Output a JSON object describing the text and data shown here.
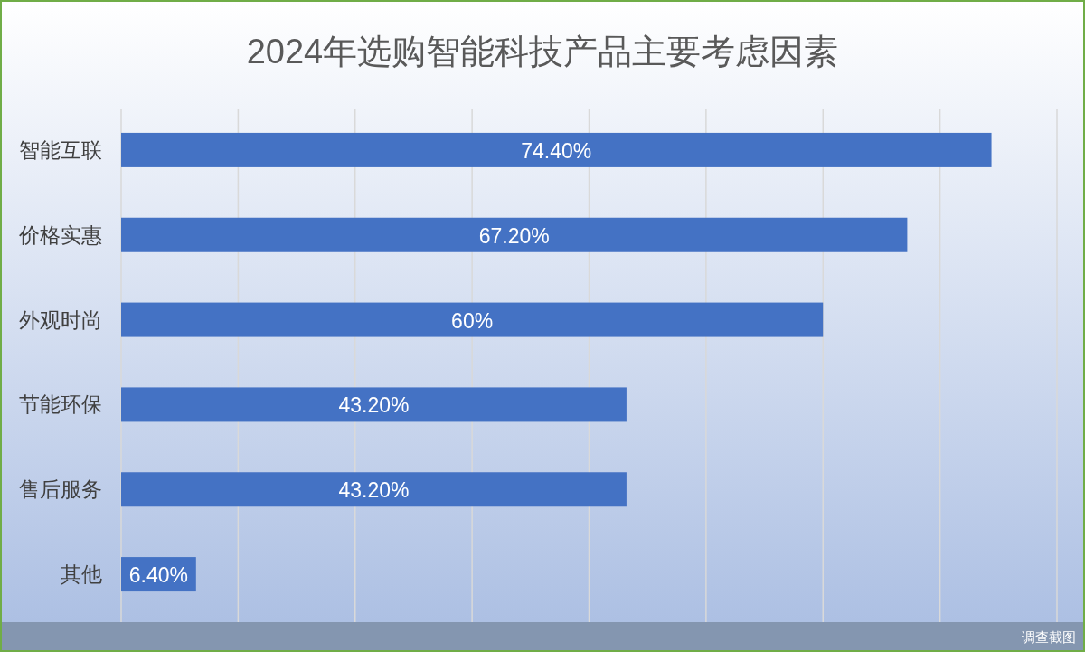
{
  "chart_data": {
    "type": "bar",
    "orientation": "horizontal",
    "title": "2024年选购智能科技产品主要考虑因素",
    "categories": [
      "智能互联",
      "价格实惠",
      "外观时尚",
      "节能环保",
      "售后服务",
      "其他"
    ],
    "values": [
      74.4,
      67.2,
      60,
      43.2,
      43.2,
      6.4
    ],
    "value_labels": [
      "74.40%",
      "67.20%",
      "60%",
      "43.20%",
      "43.20%",
      "6.40%"
    ],
    "color": "#4472c4",
    "xlim": [
      0,
      80
    ],
    "xticks": [
      {
        "value": 0,
        "label": null
      },
      {
        "value": 10,
        "label": null
      },
      {
        "value": 20,
        "label": null
      },
      {
        "value": 30,
        "label": null
      },
      {
        "value": 40,
        "label": null
      },
      {
        "value": 50,
        "label": null
      },
      {
        "value": 60,
        "label": null
      },
      {
        "value": 70,
        "label": null
      },
      {
        "value": 80,
        "label": null
      }
    ],
    "grid": "x",
    "annotations": [
      "调查截图"
    ]
  }
}
